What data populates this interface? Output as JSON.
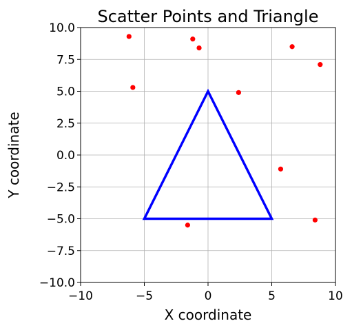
{
  "chart_data": {
    "type": "scatter",
    "title": "Scatter Points and Triangle",
    "xlabel": "X coordinate",
    "ylabel": "Y coordinate",
    "xlim": [
      -10,
      10
    ],
    "ylim": [
      -10,
      10
    ],
    "grid": true,
    "x_ticks": [
      -10,
      -5,
      0,
      5,
      10
    ],
    "x_tick_labels": [
      "−10",
      "−5",
      "0",
      "5",
      "10"
    ],
    "y_ticks": [
      -10,
      -7.5,
      -5,
      -2.5,
      0,
      2.5,
      5,
      7.5,
      10
    ],
    "y_tick_labels": [
      "−10.0",
      "−7.5",
      "−5.0",
      "−2.5",
      "0.0",
      "2.5",
      "5.0",
      "7.5",
      "10.0"
    ],
    "points": {
      "color": "#ff0000",
      "x": [
        -6.2,
        -1.2,
        -0.7,
        6.6,
        8.8,
        -5.9,
        2.4,
        5.7,
        -1.6,
        8.4
      ],
      "y": [
        9.3,
        9.1,
        8.4,
        8.5,
        7.1,
        5.3,
        4.9,
        -1.1,
        -5.5,
        -5.1
      ]
    },
    "triangle": {
      "color": "#0000ff",
      "vertices": [
        [
          0,
          5
        ],
        [
          -5,
          -5
        ],
        [
          5,
          -5
        ]
      ]
    }
  }
}
